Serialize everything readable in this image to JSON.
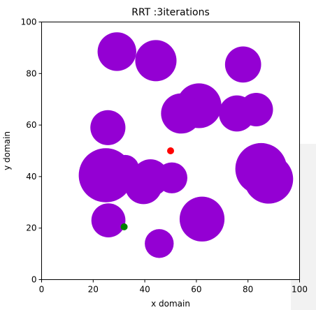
{
  "chart_data": {
    "type": "scatter",
    "title": "RRT :3iterations",
    "xlabel": "x domain",
    "ylabel": "y domain",
    "xlim": [
      0,
      100
    ],
    "ylim": [
      0,
      100
    ],
    "xticks": [
      "0",
      "20",
      "40",
      "60",
      "80",
      "100"
    ],
    "yticks": [
      "0",
      "20",
      "40",
      "60",
      "80",
      "100"
    ],
    "grid": false,
    "obstacle_color": "#9400d3",
    "obstacles": [
      {
        "x": 29.2,
        "y": 88.5,
        "r": 7.5
      },
      {
        "x": 44.3,
        "y": 85.0,
        "r": 8.0
      },
      {
        "x": 78.1,
        "y": 83.5,
        "r": 7.0
      },
      {
        "x": 61.0,
        "y": 67.5,
        "r": 8.7
      },
      {
        "x": 54.1,
        "y": 64.5,
        "r": 7.8
      },
      {
        "x": 75.7,
        "y": 64.5,
        "r": 7.0
      },
      {
        "x": 83.2,
        "y": 66.0,
        "r": 6.5
      },
      {
        "x": 25.7,
        "y": 59.0,
        "r": 6.8
      },
      {
        "x": 32.4,
        "y": 43.0,
        "r": 5.4
      },
      {
        "x": 24.9,
        "y": 40.5,
        "r": 10.5
      },
      {
        "x": 42.2,
        "y": 39.5,
        "r": 7.2
      },
      {
        "x": 39.5,
        "y": 36.5,
        "r": 7.2
      },
      {
        "x": 50.5,
        "y": 39.5,
        "r": 6.0
      },
      {
        "x": 85.1,
        "y": 43.0,
        "r": 10.0
      },
      {
        "x": 88.0,
        "y": 39.0,
        "r": 9.5
      },
      {
        "x": 25.9,
        "y": 23.0,
        "r": 6.6
      },
      {
        "x": 62.2,
        "y": 23.5,
        "r": 8.7
      },
      {
        "x": 45.6,
        "y": 14.0,
        "r": 5.6
      }
    ],
    "start": {
      "x": 50.0,
      "y": 50.0,
      "color": "#ff0000"
    },
    "goal": {
      "x": 32.0,
      "y": 20.5,
      "color": "#008000"
    }
  }
}
